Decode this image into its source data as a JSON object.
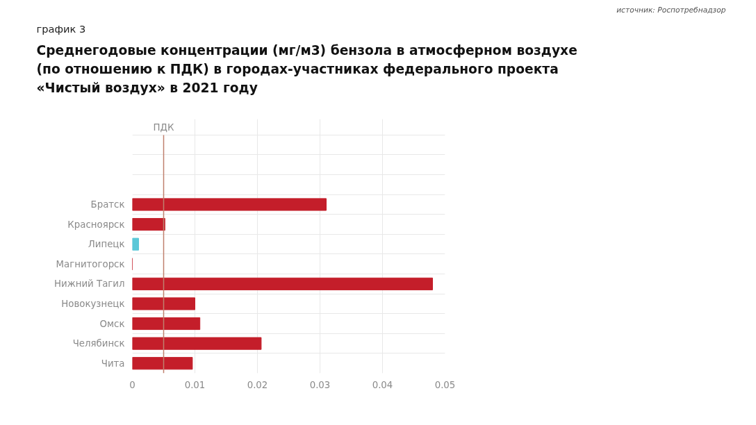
{
  "chart_data": {
    "type": "bar",
    "orientation": "horizontal",
    "subtitle": "график 3",
    "title": "Среднегодовые концентрации (мг/м3) бензола в атмосферном воздухе (по отношению к ПДК) в городах-участниках федерального проекта «Чистый воздух» в 2021 году",
    "annotations": [
      "источник: Роспотребнадзор"
    ],
    "categories": [
      null,
      null,
      null,
      "Братск",
      "Красноярск",
      "Липецк",
      "Магнитогорск",
      "Нижний Тагил",
      "Новокузнецк",
      "Омск",
      "Челябинск",
      "Чита"
    ],
    "values": [
      null,
      null,
      null,
      0.031,
      0.0052,
      0.001,
      0,
      0.048,
      0.01,
      0.0108,
      0.0206,
      0.0096
    ],
    "colors": [
      "#c41e2a",
      "#c41e2a",
      "#c41e2a",
      "#c41e2a",
      "#c41e2a",
      "#5bc8d8",
      "#c41e2a",
      "#c41e2a",
      "#c41e2a",
      "#c41e2a",
      "#c41e2a",
      "#c41e2a"
    ],
    "xlim": [
      0,
      0.05
    ],
    "xticks": [
      0,
      0.01,
      0.02,
      0.03,
      0.04,
      0.05
    ],
    "ref_lines": [
      {
        "axis": "x",
        "value": 0.005,
        "label": "ПДК",
        "color": "#c0806e"
      }
    ],
    "grid": true
  }
}
